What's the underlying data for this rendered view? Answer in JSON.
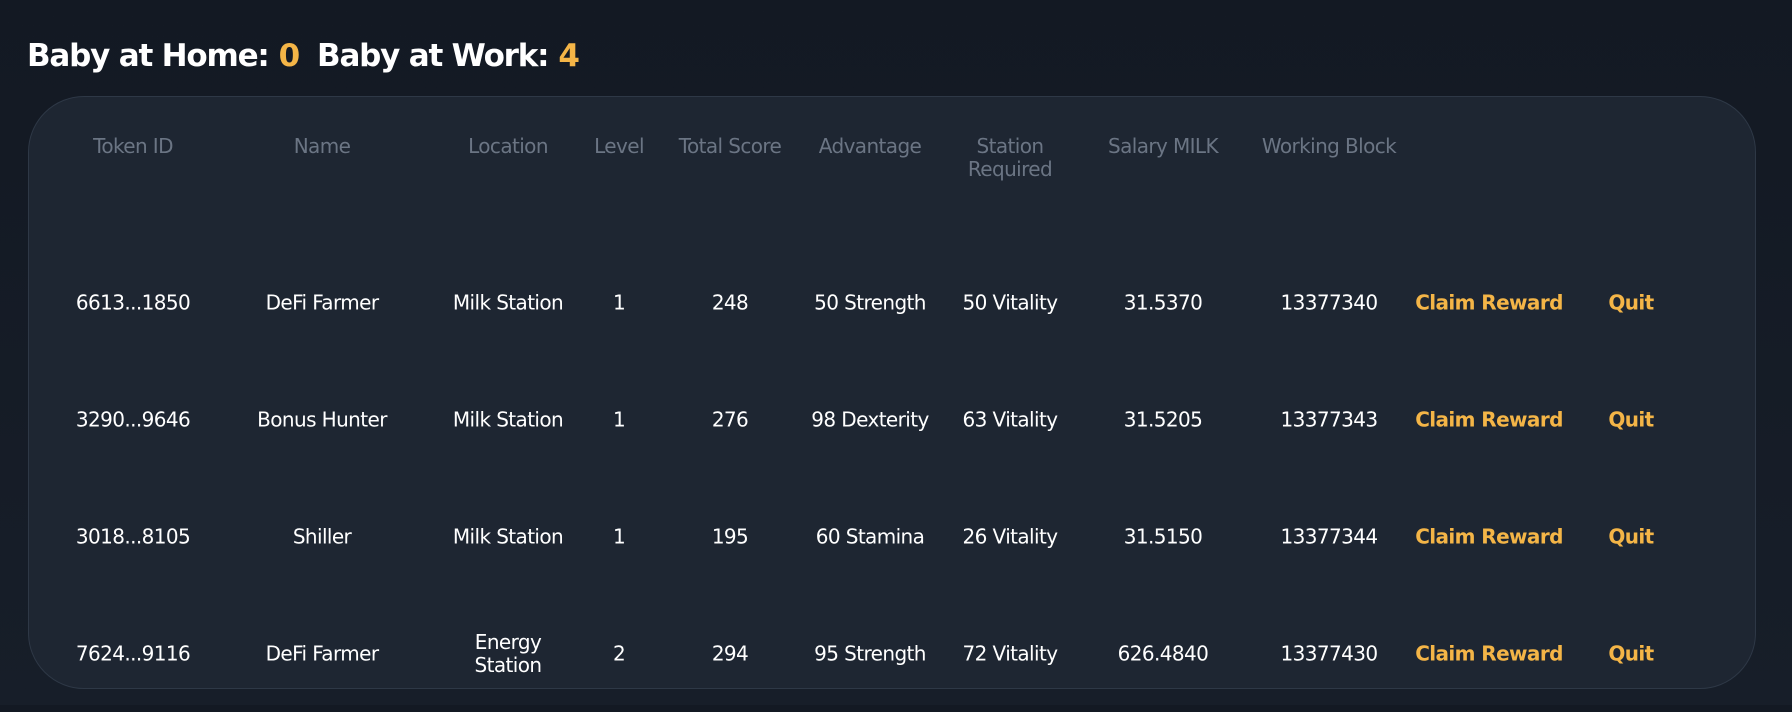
{
  "summary": {
    "home_label": "Baby at Home:",
    "home_count": "0",
    "work_label": "Baby at Work:",
    "work_count": "4"
  },
  "table": {
    "headers": {
      "token_id": "Token ID",
      "name": "Name",
      "location": "Location",
      "level": "Level",
      "total_score": "Total Score",
      "advantage": "Advantage",
      "station_required_1": "Station",
      "station_required_2": "Required",
      "salary": "Salary MILK",
      "working_block": "Working Block"
    },
    "rows": [
      {
        "token_id": "6613...1850",
        "name": "DeFi Farmer",
        "location_1": "Milk Station",
        "location_2": "",
        "level": "1",
        "total_score": "248",
        "advantage": "50 Strength",
        "station_required": "50 Vitality",
        "salary": "31.5370",
        "working_block": "13377340",
        "claim_label": "Claim Reward",
        "quit_label": "Quit"
      },
      {
        "token_id": "3290...9646",
        "name": "Bonus Hunter",
        "location_1": "Milk Station",
        "location_2": "",
        "level": "1",
        "total_score": "276",
        "advantage": "98 Dexterity",
        "station_required": "63 Vitality",
        "salary": "31.5205",
        "working_block": "13377343",
        "claim_label": "Claim Reward",
        "quit_label": "Quit"
      },
      {
        "token_id": "3018...8105",
        "name": "Shiller",
        "location_1": "Milk Station",
        "location_2": "",
        "level": "1",
        "total_score": "195",
        "advantage": "60 Stamina",
        "station_required": "26 Vitality",
        "salary": "31.5150",
        "working_block": "13377344",
        "claim_label": "Claim Reward",
        "quit_label": "Quit"
      },
      {
        "token_id": "7624...9116",
        "name": "DeFi Farmer",
        "location_1": "Energy",
        "location_2": "Station",
        "level": "2",
        "total_score": "294",
        "advantage": "95 Strength",
        "station_required": "72 Vitality",
        "salary": "626.4840",
        "working_block": "13377430",
        "claim_label": "Claim Reward",
        "quit_label": "Quit"
      }
    ]
  },
  "colors": {
    "accent": "#f4b547",
    "header_text": "#6b7584",
    "panel_bg": "#1e2632",
    "page_bg": "#131923"
  }
}
